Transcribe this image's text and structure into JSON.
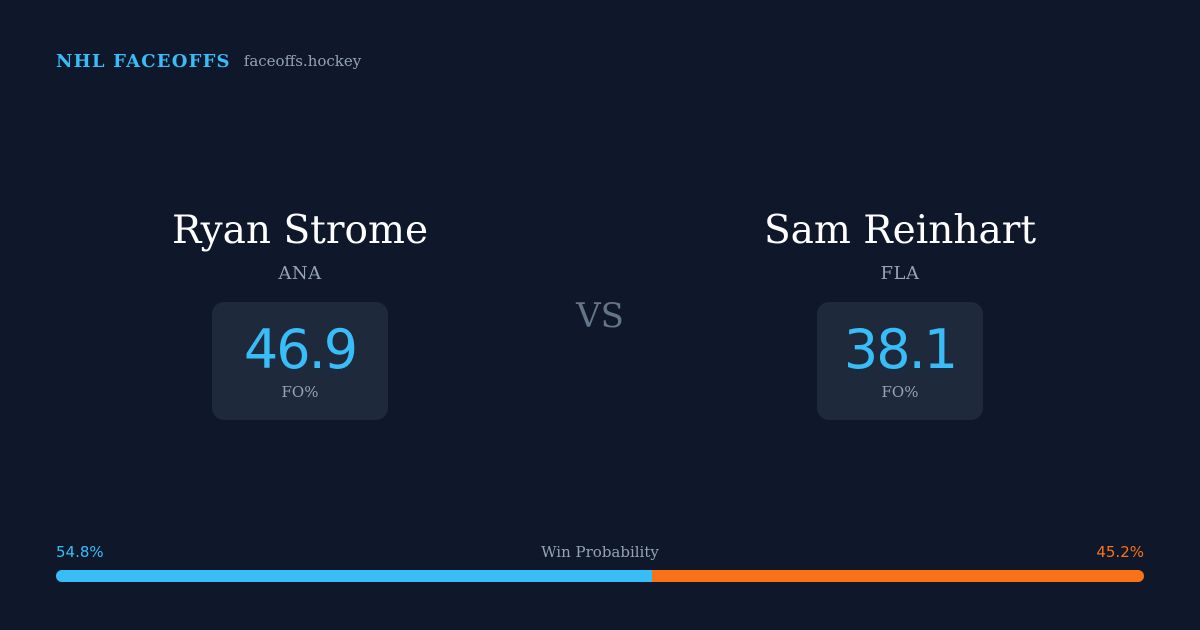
{
  "header": {
    "brand": "NHL FACEOFFS",
    "domain": "faceoffs.hockey"
  },
  "matchup": {
    "left": {
      "name": "Ryan Strome",
      "team": "ANA",
      "stat_value": "46.9",
      "stat_label": "FO%"
    },
    "vs": "VS",
    "right": {
      "name": "Sam Reinhart",
      "team": "FLA",
      "stat_value": "38.1",
      "stat_label": "FO%"
    }
  },
  "win_probability": {
    "title": "Win Probability",
    "left_label": "54.8%",
    "right_label": "45.2%",
    "left_value": 54.8,
    "right_value": 45.2,
    "left_color": "#38bdf8",
    "right_color": "#f97316"
  }
}
